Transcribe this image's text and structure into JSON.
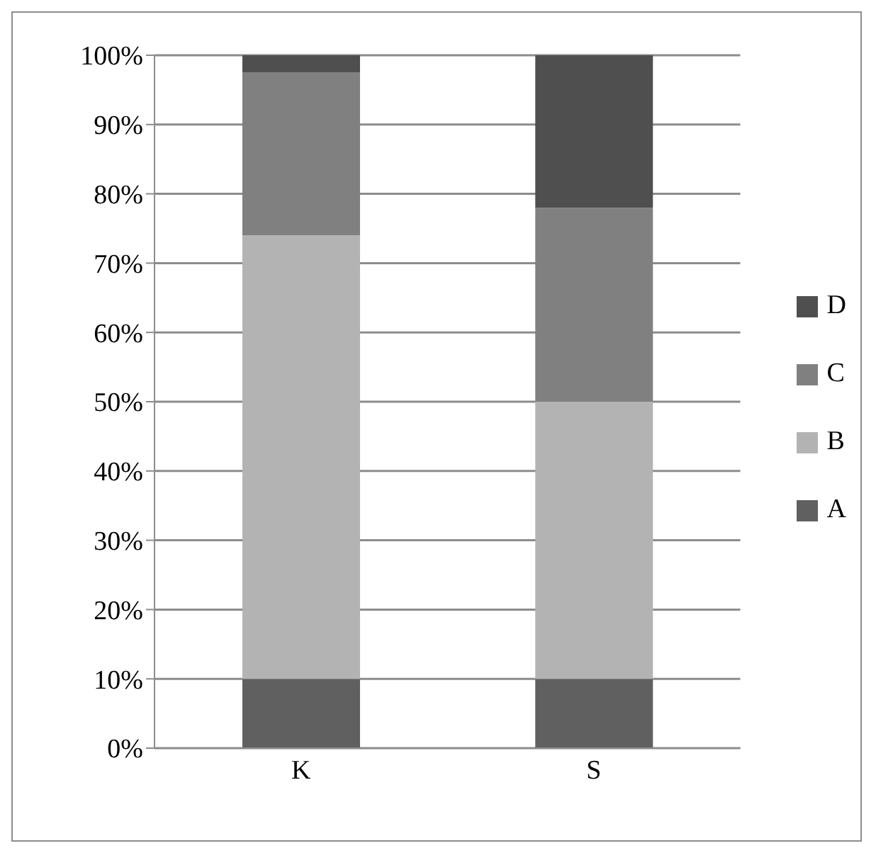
{
  "chart_data": {
    "type": "bar",
    "stacked": true,
    "categories": [
      "K",
      "S"
    ],
    "series": [
      {
        "name": "A",
        "color": "#606060",
        "values": [
          10,
          10
        ]
      },
      {
        "name": "B",
        "color": "#b3b3b3",
        "values": [
          64,
          40
        ]
      },
      {
        "name": "C",
        "color": "#808080",
        "values": [
          23.5,
          28
        ]
      },
      {
        "name": "D",
        "color": "#4f4f4f",
        "values": [
          2.5,
          22
        ]
      }
    ],
    "ylim": [
      0,
      100
    ],
    "yticks": [
      {
        "value": 0,
        "label": "0%"
      },
      {
        "value": 10,
        "label": "10%"
      },
      {
        "value": 20,
        "label": "20%"
      },
      {
        "value": 30,
        "label": "30%"
      },
      {
        "value": 40,
        "label": "40%"
      },
      {
        "value": 50,
        "label": "50%"
      },
      {
        "value": 60,
        "label": "60%"
      },
      {
        "value": 70,
        "label": "70%"
      },
      {
        "value": 80,
        "label": "80%"
      },
      {
        "value": 90,
        "label": "90%"
      },
      {
        "value": 100,
        "label": "100%"
      }
    ],
    "grid": "y",
    "legend": "right"
  }
}
